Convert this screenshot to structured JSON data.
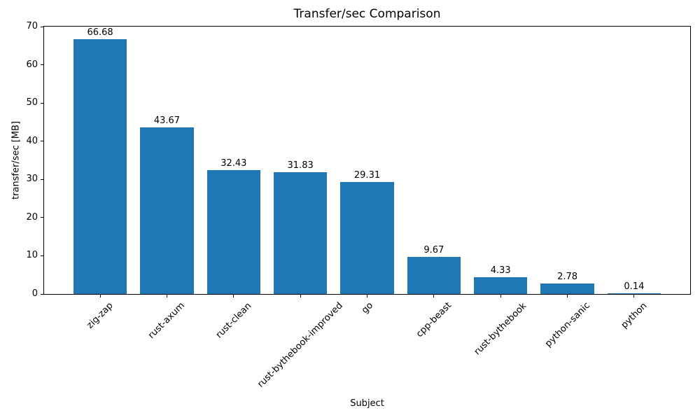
{
  "chart_data": {
    "type": "bar",
    "title": "Transfer/sec Comparison",
    "xlabel": "Subject",
    "ylabel": "transfer/sec [MB]",
    "categories": [
      "zig-zap",
      "rust-axum",
      "rust-clean",
      "rust-bythebook-improved",
      "go",
      "cpp-beast",
      "rust-bythebook",
      "python-sanic",
      "python"
    ],
    "values": [
      66.68,
      43.67,
      32.43,
      31.83,
      29.31,
      9.67,
      4.33,
      2.78,
      0.14
    ],
    "value_labels": [
      "66.68",
      "43.67",
      "32.43",
      "31.83",
      "29.31",
      "9.67",
      "4.33",
      "2.78",
      "0.14"
    ],
    "ylim": [
      0,
      70
    ],
    "yticks": [
      0,
      10,
      20,
      30,
      40,
      50,
      60,
      70
    ],
    "bar_color": "#1f77b4",
    "xtick_rotation": 45,
    "grid": false,
    "legend_position": "none",
    "background_color": "#ffffff"
  }
}
